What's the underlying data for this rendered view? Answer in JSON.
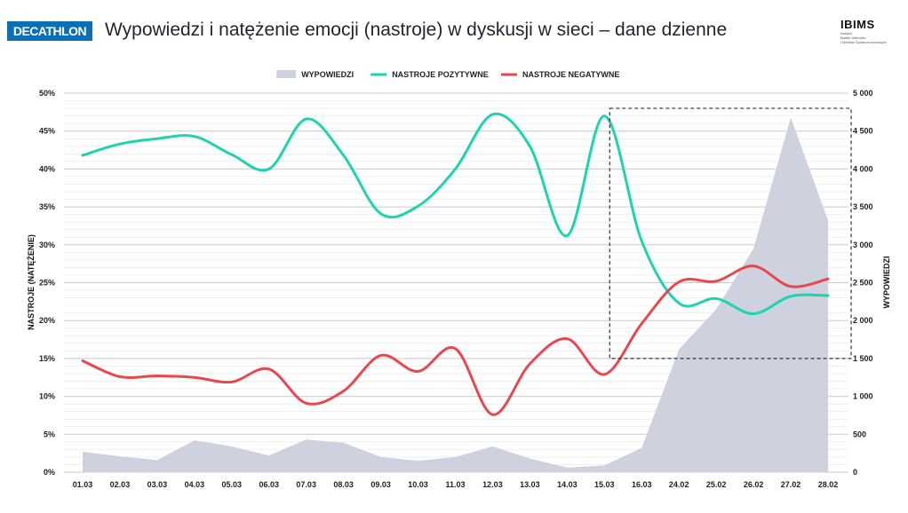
{
  "header": {
    "logo": "DECATHLON",
    "title": "Wypowiedzi i natężenie emocji (nastroje) w dyskusji w sieci – dane dzienne",
    "brand": "IBIMS",
    "brand_sub": [
      "Instytut",
      "Badań Internetu",
      "i Mediów Społecznościowych"
    ]
  },
  "chart_data": {
    "type": "line",
    "categories": [
      "01.03",
      "02.03",
      "03.03",
      "04.03",
      "05.03",
      "06.03",
      "07.03",
      "08.03",
      "09.03",
      "10.03",
      "11.03",
      "12.03",
      "13.03",
      "14.03",
      "15.03",
      "16.03",
      "24.02",
      "25.02",
      "26.02",
      "27.02",
      "28.02"
    ],
    "ylabel": "NASTROJE (NATĘŻENIE)",
    "y2label": "WYPOWIEDZI",
    "ylim": [
      0,
      50
    ],
    "y2lim": [
      0,
      5000
    ],
    "yticks": [
      "0%",
      "5%",
      "10%",
      "15%",
      "20%",
      "25%",
      "30%",
      "35%",
      "40%",
      "45%",
      "50%"
    ],
    "y2ticks": [
      "0",
      "500",
      "1 000",
      "1 500",
      "2 000",
      "2 500",
      "3 000",
      "3 500",
      "4 000",
      "4 500",
      "5 000"
    ],
    "legend_position": "top",
    "series": [
      {
        "name": "WYPOWIEDZI",
        "type": "area",
        "axis": "right",
        "color": "#cdd2de",
        "values": [
          270,
          210,
          160,
          420,
          340,
          220,
          430,
          390,
          200,
          150,
          200,
          340,
          180,
          60,
          90,
          320,
          1620,
          2150,
          2950,
          4680,
          3320
        ]
      },
      {
        "name": "NASTROJE POZYTYWNE",
        "type": "line",
        "axis": "left",
        "color": "#1ed3b0",
        "values": [
          41.8,
          43.3,
          44.0,
          44.3,
          41.9,
          40.0,
          46.6,
          41.8,
          34.1,
          35.1,
          40.0,
          47.2,
          43.0,
          31.2,
          47.0,
          30.5,
          22.3,
          22.9,
          20.9,
          23.2,
          23.3
        ]
      },
      {
        "name": "NASTROJE NEGATYWNE",
        "type": "line",
        "axis": "left",
        "color": "#e9474f",
        "values": [
          14.7,
          12.6,
          12.7,
          12.5,
          11.9,
          13.6,
          9.1,
          10.7,
          15.4,
          13.3,
          16.3,
          7.6,
          14.3,
          17.6,
          12.9,
          19.6,
          25.1,
          25.2,
          27.2,
          24.5,
          25.5
        ]
      }
    ],
    "highlight_range": {
      "from": "16.03",
      "to": "28.02",
      "y_from": 15,
      "y_to": 48
    }
  }
}
